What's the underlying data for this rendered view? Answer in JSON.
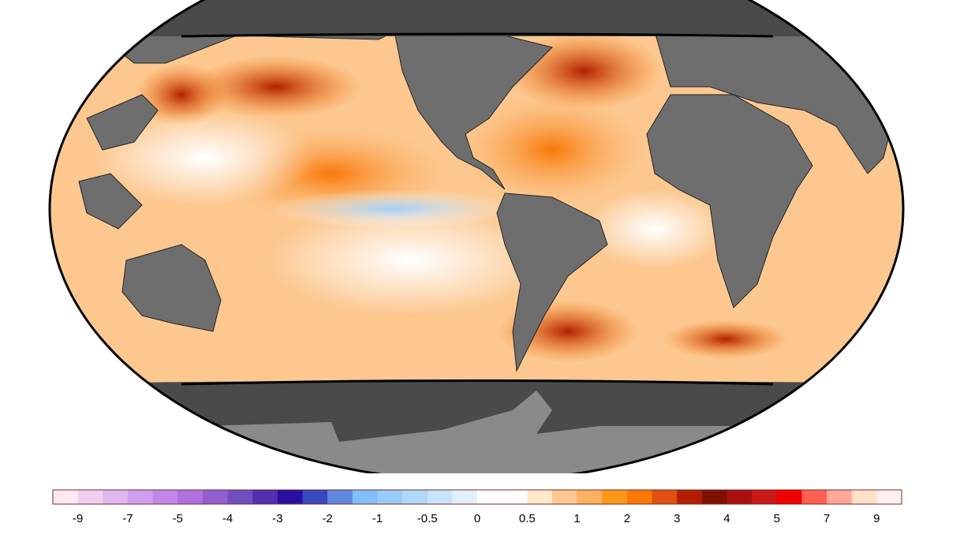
{
  "colorbar": {
    "ticks": [
      -9,
      -7,
      -5,
      -4,
      -3,
      -2,
      -1,
      -0.5,
      0,
      0.5,
      1,
      2,
      3,
      4,
      5,
      7,
      9
    ],
    "colors": [
      "#ffe8f2",
      "#f0d0f0",
      "#e0b8f0",
      "#d0a0f0",
      "#c088e8",
      "#b070e0",
      "#9060d0",
      "#7050c0",
      "#5030b0",
      "#2810a0",
      "#3848c0",
      "#6088e0",
      "#80c0f8",
      "#98ccf8",
      "#b0d8f8",
      "#c8e4fa",
      "#e0f0fc",
      "#ffffff",
      "#ffffff",
      "#ffe8cc",
      "#fcc890",
      "#fcb060",
      "#fc9818",
      "#f87808",
      "#e05010",
      "#b02000",
      "#801000",
      "#a81010",
      "#c81818",
      "#f00000",
      "#ff6050",
      "#ffa898",
      "#ffe0c8",
      "#fff0f0"
    ]
  }
}
